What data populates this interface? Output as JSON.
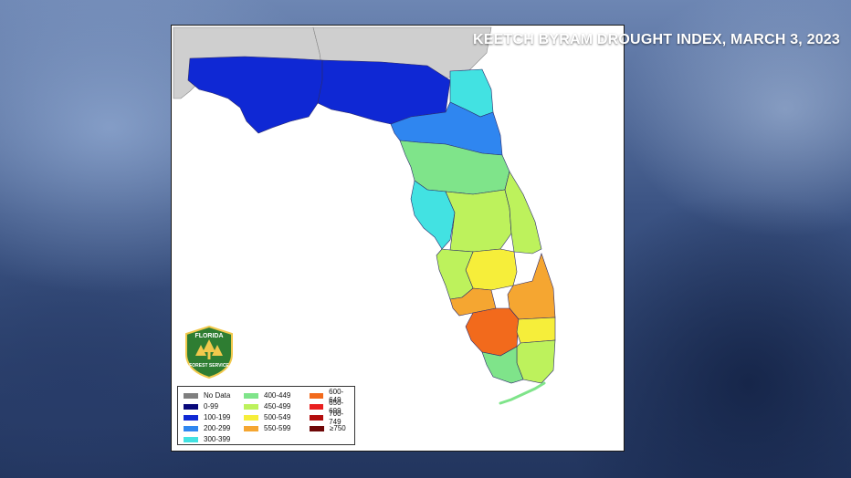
{
  "title": "KEETCH BYRAM DROUGHT INDEX, MARCH 3, 2023",
  "logo": {
    "top_text": "FLORIDA",
    "bottom_text": "FOREST SERVICE",
    "icon": "florida-forest-service-badge"
  },
  "colors": {
    "no_data": "#7f7f7f",
    "r0_99": "#08087a",
    "r100_199": "#0f28d4",
    "r200_299": "#2f86f0",
    "r300_399": "#42e2e2",
    "r400_449": "#7fe48a",
    "r450_499": "#bdf25c",
    "r500_549": "#f6ee3a",
    "r550_599": "#f5a631",
    "r600_649": "#f26a1c",
    "r650_699": "#e91f1f",
    "r700_749": "#b30d0d",
    "r750": "#6e0707"
  },
  "legend": {
    "items": [
      {
        "label": "No Data",
        "color": "#7f7f7f"
      },
      {
        "label": "0-99",
        "color": "#08087a"
      },
      {
        "label": "100-199",
        "color": "#0f28d4"
      },
      {
        "label": "200-299",
        "color": "#2f86f0"
      },
      {
        "label": "300-399",
        "color": "#42e2e2"
      },
      {
        "label": "400-449",
        "color": "#7fe48a"
      },
      {
        "label": "450-499",
        "color": "#bdf25c"
      },
      {
        "label": "500-549",
        "color": "#f6ee3a"
      },
      {
        "label": "550-599",
        "color": "#f5a631"
      },
      {
        "label": "600-649",
        "color": "#f26a1c"
      },
      {
        "label": "650-699",
        "color": "#e91f1f"
      },
      {
        "label": "700-749",
        "color": "#b30d0d"
      },
      {
        "label": "≥750",
        "color": "#6e0707"
      }
    ]
  },
  "map": {
    "regions": [
      {
        "name": "panhandle",
        "range": "100-199"
      },
      {
        "name": "big-bend",
        "range": "100-199"
      },
      {
        "name": "northeast-coast",
        "range": "300-399"
      },
      {
        "name": "north-central",
        "range": "200-299"
      },
      {
        "name": "nature-coast",
        "range": "400-449"
      },
      {
        "name": "tampa-bay",
        "range": "300-399"
      },
      {
        "name": "central",
        "range": "450-499"
      },
      {
        "name": "east-coast",
        "range": "450-499"
      },
      {
        "name": "southwest",
        "range": "550-599"
      },
      {
        "name": "collier",
        "range": "600-649"
      },
      {
        "name": "palm-beach",
        "range": "550-599"
      },
      {
        "name": "broward",
        "range": "500-549"
      },
      {
        "name": "miami-dade",
        "range": "450-499"
      },
      {
        "name": "keys",
        "range": "400-449"
      }
    ]
  }
}
